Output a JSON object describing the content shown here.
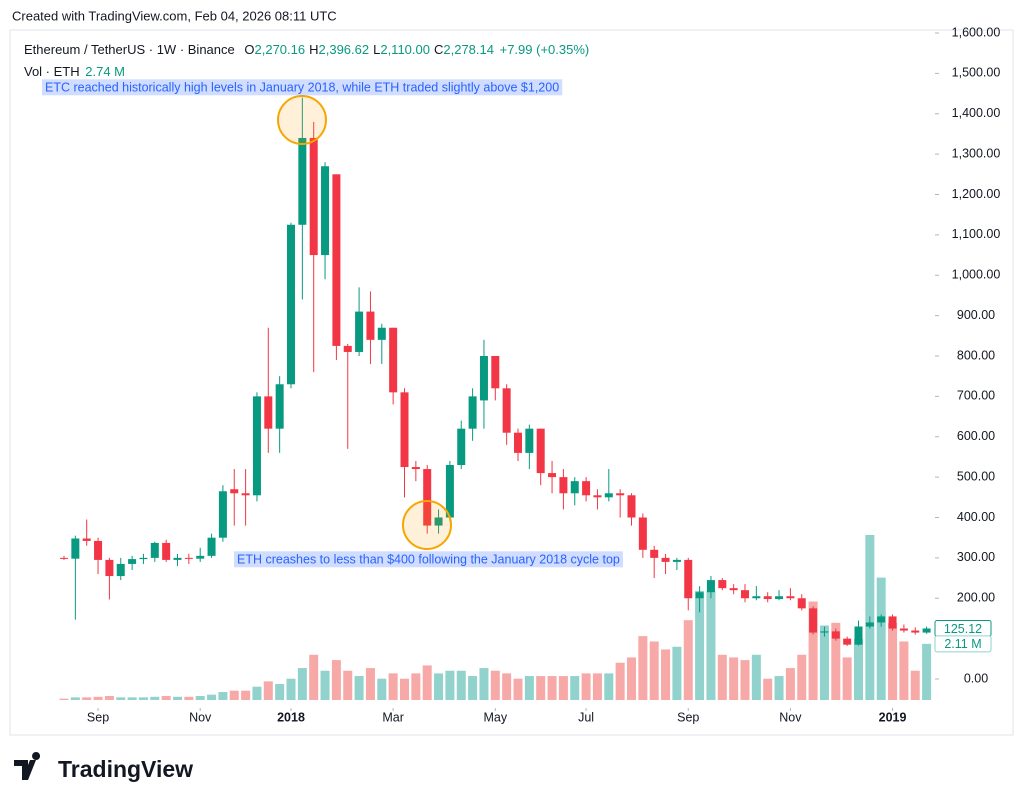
{
  "header": {
    "watermark": "Created with TradingView.com, Feb 04, 2026 08:11 UTC"
  },
  "legend": {
    "symbol": "Ethereum / TetherUS · 1W · Binance",
    "ohlc": [
      {
        "label": "O",
        "value": "2,270.16"
      },
      {
        "label": "H",
        "value": "2,396.62"
      },
      {
        "label": "L",
        "value": "2,110.00"
      },
      {
        "label": "C",
        "value": "2,278.14"
      }
    ],
    "change": "+7.99 (+0.35%)",
    "volume": {
      "label": "Vol · ETH",
      "value": "2.74 M"
    }
  },
  "chart_data": {
    "type": "candlestick",
    "categories": [
      null,
      null,
      null,
      null,
      null,
      null,
      null,
      null,
      null,
      null,
      null,
      null,
      null,
      null,
      null,
      null,
      null,
      null,
      null,
      null,
      null,
      null,
      null,
      null,
      null,
      null,
      null,
      null,
      null,
      null,
      null,
      null,
      null,
      null,
      null,
      null,
      null,
      null,
      null,
      null,
      null,
      null,
      null,
      null,
      null,
      null,
      null,
      null,
      null,
      null,
      null,
      null,
      null,
      null,
      null,
      null,
      null,
      null,
      null,
      null,
      null,
      null,
      null,
      null,
      null,
      null,
      null,
      null,
      null,
      null,
      null,
      null,
      null,
      null,
      null,
      null,
      null
    ],
    "open": [
      300,
      298,
      348,
      342,
      295,
      255,
      285,
      297,
      300,
      337,
      295,
      300,
      298,
      305,
      350,
      470,
      460,
      455,
      700,
      620,
      730,
      1125,
      1340,
      1050,
      1250,
      825,
      810,
      910,
      840,
      870,
      710,
      525,
      520,
      380,
      400,
      530,
      620,
      690,
      800,
      720,
      610,
      560,
      620,
      510,
      500,
      460,
      490,
      455,
      450,
      460,
      455,
      400,
      320,
      300,
      290,
      295,
      200,
      215,
      245,
      225,
      220,
      200,
      205,
      198,
      205,
      200,
      175,
      115,
      118,
      100,
      85,
      130,
      140,
      155,
      125,
      120,
      115
    ],
    "high": [
      305,
      355,
      395,
      350,
      300,
      300,
      305,
      310,
      340,
      345,
      310,
      310,
      325,
      360,
      480,
      520,
      520,
      710,
      870,
      750,
      1130,
      1440,
      1380,
      1280,
      1250,
      830,
      970,
      960,
      880,
      870,
      720,
      540,
      530,
      420,
      540,
      640,
      720,
      840,
      800,
      730,
      620,
      630,
      620,
      540,
      520,
      500,
      500,
      470,
      520,
      470,
      460,
      410,
      330,
      310,
      300,
      300,
      230,
      255,
      250,
      235,
      235,
      230,
      215,
      220,
      225,
      210,
      180,
      130,
      125,
      105,
      145,
      155,
      160,
      160,
      135,
      128,
      130
    ],
    "low": [
      295,
      147,
      330,
      260,
      197,
      245,
      270,
      285,
      290,
      290,
      280,
      285,
      290,
      300,
      340,
      380,
      380,
      440,
      560,
      560,
      720,
      940,
      760,
      990,
      790,
      570,
      800,
      780,
      780,
      680,
      450,
      490,
      360,
      360,
      390,
      520,
      590,
      620,
      690,
      580,
      540,
      520,
      480,
      460,
      420,
      430,
      440,
      420,
      440,
      400,
      380,
      300,
      250,
      260,
      270,
      170,
      165,
      200,
      220,
      210,
      190,
      195,
      190,
      195,
      195,
      170,
      110,
      105,
      95,
      82,
      83,
      125,
      130,
      120,
      115,
      110,
      112
    ],
    "close": [
      298,
      348,
      342,
      295,
      255,
      285,
      297,
      300,
      337,
      295,
      300,
      298,
      305,
      350,
      465,
      460,
      455,
      700,
      620,
      730,
      1125,
      1340,
      1050,
      1270,
      825,
      810,
      910,
      840,
      870,
      710,
      525,
      520,
      380,
      400,
      530,
      620,
      700,
      800,
      720,
      610,
      560,
      620,
      510,
      500,
      460,
      490,
      455,
      450,
      460,
      455,
      400,
      320,
      300,
      290,
      295,
      200,
      215,
      245,
      225,
      220,
      200,
      205,
      198,
      205,
      200,
      175,
      115,
      118,
      100,
      85,
      130,
      140,
      155,
      125,
      120,
      115,
      125.12
    ],
    "volume": {
      "values": [
        0.05,
        0.1,
        0.1,
        0.12,
        0.15,
        0.1,
        0.1,
        0.1,
        0.12,
        0.15,
        0.12,
        0.12,
        0.15,
        0.2,
        0.3,
        0.35,
        0.35,
        0.5,
        0.7,
        0.6,
        0.8,
        1.2,
        1.7,
        1.1,
        1.5,
        1.1,
        0.9,
        1.2,
        0.8,
        1.0,
        0.8,
        1.0,
        1.3,
        1.0,
        1.1,
        1.1,
        0.9,
        1.2,
        1.1,
        1.0,
        0.8,
        0.9,
        0.9,
        0.9,
        0.9,
        0.9,
        1.0,
        1.0,
        1.0,
        1.4,
        1.6,
        2.4,
        2.2,
        1.9,
        2.0,
        3.0,
        4.1,
        4.1,
        1.7,
        1.6,
        1.5,
        1.7,
        0.8,
        0.9,
        1.2,
        1.7,
        3.7,
        2.8,
        2.9,
        1.6,
        2.3,
        6.2,
        4.6,
        2.9,
        2.2,
        1.1,
        2.11
      ],
      "value_labels": {
        "76": "2.11 M"
      }
    },
    "up_color": "#089981",
    "down_color": "#f23645",
    "volume_up_color": "#92d2cc",
    "volume_down_color": "#f7a9a7",
    "ylim": [
      0,
      1600
    ],
    "yticks": [
      {
        "value": 0,
        "label": "0.00"
      },
      {
        "value": 200,
        "label": "200.00"
      },
      {
        "value": 300,
        "label": "300.00"
      },
      {
        "value": 400,
        "label": "400.00"
      },
      {
        "value": 500,
        "label": "500.00"
      },
      {
        "value": 600,
        "label": "600.00"
      },
      {
        "value": 700,
        "label": "700.00"
      },
      {
        "value": 800,
        "label": "800.00"
      },
      {
        "value": 900,
        "label": "900.00"
      },
      {
        "value": 1000,
        "label": "1,000.00"
      },
      {
        "value": 1100,
        "label": "1,100.00"
      },
      {
        "value": 1200,
        "label": "1,200.00"
      },
      {
        "value": 1300,
        "label": "1,300.00"
      },
      {
        "value": 1400,
        "label": "1,400.00"
      },
      {
        "value": 1500,
        "label": "1,500.00"
      },
      {
        "value": 1600,
        "label": "1,600.00"
      }
    ],
    "xticks": [
      {
        "value": 3,
        "label": "Sep"
      },
      {
        "value": 12,
        "label": "Nov"
      },
      {
        "value": 20,
        "label": "2018"
      },
      {
        "value": 29,
        "label": "Mar"
      },
      {
        "value": 38,
        "label": "May"
      },
      {
        "value": 46,
        "label": "Jul"
      },
      {
        "value": 55,
        "label": "Sep"
      },
      {
        "value": 64,
        "label": "Nov"
      },
      {
        "value": 73,
        "label": "2019"
      }
    ],
    "grid": false,
    "annotations": [
      {
        "text": "ETC reached historically high levels in January 2018, while ETH traded slightly above $1,200"
      },
      {
        "text": "ETH creashes to less than $400 following the January 2018 cycle top"
      }
    ]
  },
  "footer": {
    "logo": "TradingView"
  }
}
